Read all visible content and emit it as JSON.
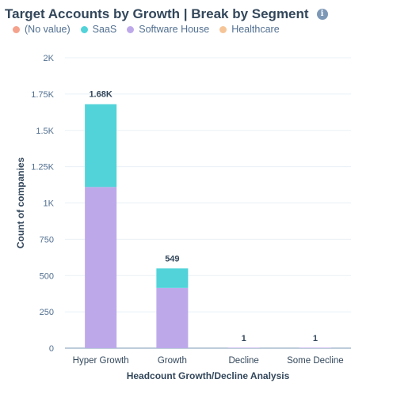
{
  "header": {
    "title": "Target Accounts by Growth | Break by Segment",
    "info_icon": "info-icon",
    "info_glyph": "i"
  },
  "chart_data": {
    "type": "bar",
    "stacked": true,
    "categories": [
      "Hyper Growth",
      "Growth",
      "Decline",
      "Some Decline"
    ],
    "series": [
      {
        "name": "(No value)",
        "color": "#f5a28c",
        "values": [
          0,
          0,
          0,
          0
        ]
      },
      {
        "name": "SaaS",
        "color": "#51d3d9",
        "values": [
          570,
          134,
          0,
          0
        ]
      },
      {
        "name": "Software House",
        "color": "#bda9ea",
        "values": [
          1110,
          415,
          1,
          1
        ]
      },
      {
        "name": "Healthcare",
        "color": "#f6c597",
        "values": [
          0,
          0,
          0,
          0
        ]
      }
    ],
    "totals": [
      "1.68K",
      "549",
      "1",
      "1"
    ],
    "xlabel": "Headcount Growth/Decline Analysis",
    "ylabel": "Count of companies",
    "ylim": [
      0,
      2000
    ],
    "yticks": [
      {
        "value": 0,
        "label": "0"
      },
      {
        "value": 250,
        "label": "250"
      },
      {
        "value": 500,
        "label": "500"
      },
      {
        "value": 750,
        "label": "750"
      },
      {
        "value": 1000,
        "label": "1K"
      },
      {
        "value": 1250,
        "label": "1.25K"
      },
      {
        "value": 1500,
        "label": "1.5K"
      },
      {
        "value": 1750,
        "label": "1.75K"
      },
      {
        "value": 2000,
        "label": "2K"
      }
    ],
    "legend_position": "top-left",
    "grid": true,
    "colors": {
      "grid": "#eaf0f6",
      "axis": "#7c98b6"
    }
  }
}
